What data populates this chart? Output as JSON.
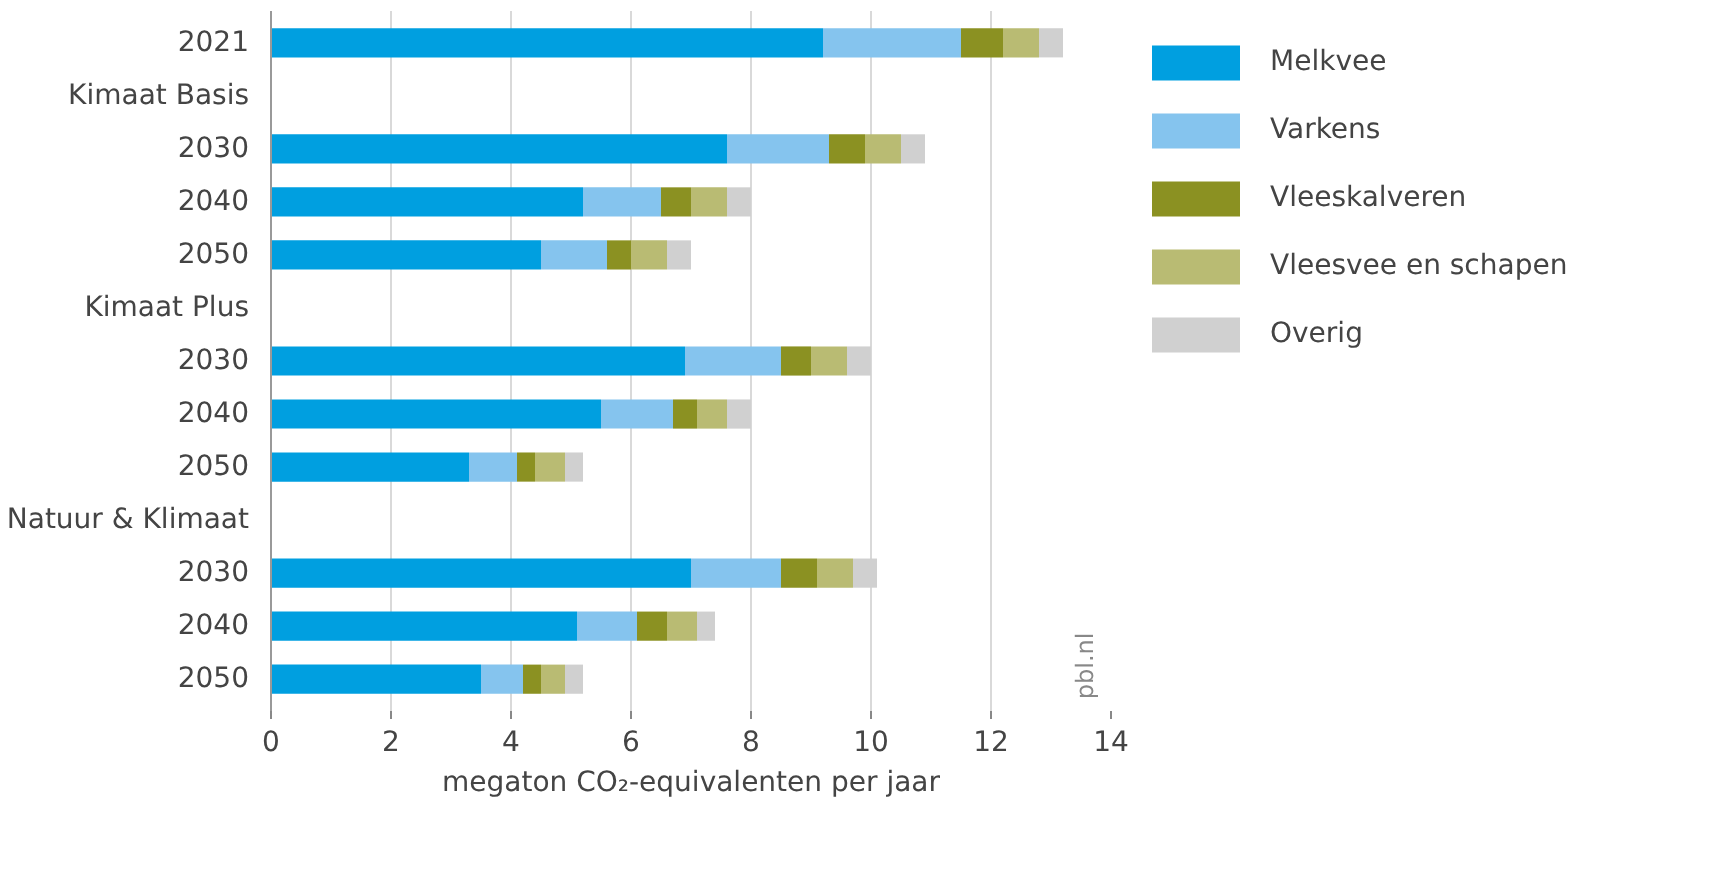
{
  "chart_data": {
    "type": "bar",
    "orientation": "horizontal",
    "stacked": true,
    "categories": [
      "2021",
      "Kimaat Basis",
      "2030",
      "2040",
      "2050",
      "Kimaat Plus",
      "2030",
      "2040",
      "2050",
      "Natuur & Klimaat",
      "2030",
      "2040",
      "2050"
    ],
    "series": [
      {
        "name": "Melkvee",
        "color": "#009fe0",
        "values": [
          9.2,
          null,
          7.6,
          5.2,
          4.5,
          null,
          6.9,
          5.5,
          3.3,
          null,
          7.0,
          5.1,
          3.5
        ]
      },
      {
        "name": "Varkens",
        "color": "#85c4ee",
        "values": [
          2.3,
          null,
          1.7,
          1.3,
          1.1,
          null,
          1.6,
          1.2,
          0.8,
          null,
          1.5,
          1.0,
          0.7
        ]
      },
      {
        "name": "Vleeskalveren",
        "color": "#8b9122",
        "values": [
          0.7,
          null,
          0.6,
          0.5,
          0.4,
          null,
          0.5,
          0.4,
          0.3,
          null,
          0.6,
          0.5,
          0.3
        ]
      },
      {
        "name": "Vleesvee en schapen",
        "color": "#b9bb73",
        "values": [
          0.6,
          null,
          0.6,
          0.6,
          0.6,
          null,
          0.6,
          0.5,
          0.5,
          null,
          0.6,
          0.5,
          0.4
        ]
      },
      {
        "name": "Overig",
        "color": "#d0d0d0",
        "values": [
          0.4,
          null,
          0.4,
          0.4,
          0.4,
          null,
          0.4,
          0.4,
          0.3,
          null,
          0.4,
          0.3,
          0.3
        ]
      }
    ],
    "xlim": [
      0,
      14
    ],
    "xticks": [
      0,
      2,
      4,
      6,
      8,
      10,
      12,
      14
    ],
    "xlabel": "megaton CO₂-equivalenten per jaar",
    "grid": "x",
    "legend": "right",
    "annotations": [
      "pbl.nl"
    ]
  }
}
